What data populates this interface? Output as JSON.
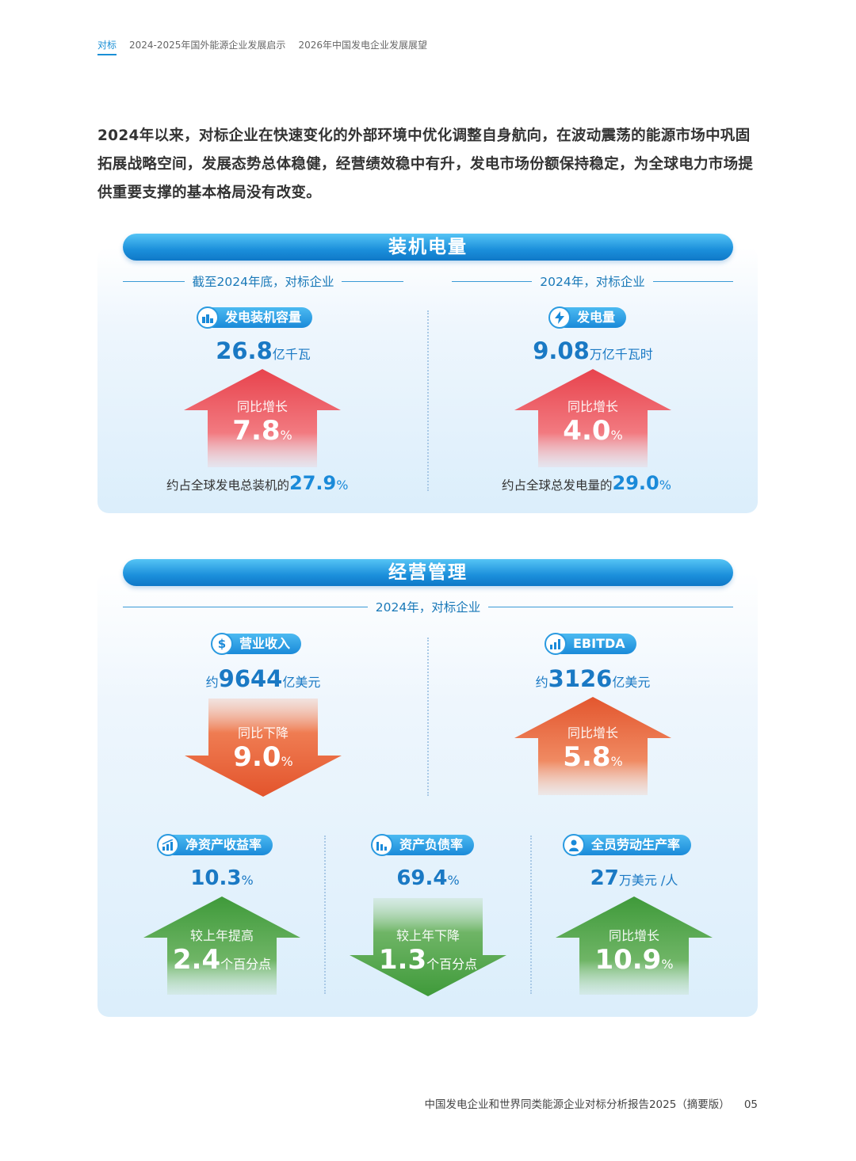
{
  "nav": {
    "items": [
      "对标",
      "2024-2025年国外能源企业发展启示",
      "2026年中国发电企业发展展望"
    ]
  },
  "intro": "2024年以来，对标企业在快速变化的外部环境中优化调整自身航向，在波动震荡的能源市场中巩固拓展战略空间，发展态势总体稳健，经营绩效稳中有升，发电市场份额保持稳定，为全球电力市场提供重要支撑的基本格局没有改变。",
  "capacity": {
    "title": "装机电量",
    "left": {
      "subhead": "截至2024年底，对标企业",
      "pill": "发电装机容量",
      "icon": "power-plant-icon",
      "value": "26.8",
      "unit": "亿千瓦",
      "change_label": "同比增长",
      "change_value": "7.8",
      "change_unit": "%",
      "share_text": "约占全球发电总装机的",
      "share_value": "27.9",
      "share_unit": "%"
    },
    "right": {
      "subhead": "2024年，对标企业",
      "pill": "发电量",
      "icon": "lightning-icon",
      "value": "9.08",
      "unit": "万亿千瓦时",
      "change_label": "同比增长",
      "change_value": "4.0",
      "change_unit": "%",
      "share_text": "约占全球总发电量的",
      "share_value": "29.0",
      "share_unit": "%"
    }
  },
  "operations": {
    "title": "经营管理",
    "subhead": "2024年，对标企业",
    "revenue": {
      "pill": "营业收入",
      "icon": "dollar-icon",
      "prefix": "约",
      "value": "9644",
      "unit": "亿美元",
      "change_label": "同比下降",
      "change_value": "9.0",
      "change_unit": "%"
    },
    "ebitda": {
      "pill": "EBITDA",
      "icon": "bar-chart-icon",
      "prefix": "约",
      "value": "3126",
      "unit": "亿美元",
      "change_label": "同比增长",
      "change_value": "5.8",
      "change_unit": "%"
    },
    "roe": {
      "pill": "净资产收益率",
      "icon": "growth-chart-icon",
      "value": "10.3",
      "unit": "%",
      "change_label": "较上年提高",
      "change_value": "2.4",
      "change_unit": "个百分点"
    },
    "debt": {
      "pill": "资产负债率",
      "icon": "decline-chart-icon",
      "value": "69.4",
      "unit": "%",
      "change_label": "较上年下降",
      "change_value": "1.3",
      "change_unit": "个百分点"
    },
    "labor": {
      "pill": "全员劳动生产率",
      "icon": "worker-icon",
      "value": "27",
      "unit": "万美元 /人",
      "change_label": "同比增长",
      "change_value": "10.9",
      "change_unit": "%"
    }
  },
  "footer": {
    "title": "中国发电企业和世界同类能源企业对标分析报告2025（摘要版）",
    "page": "05"
  }
}
